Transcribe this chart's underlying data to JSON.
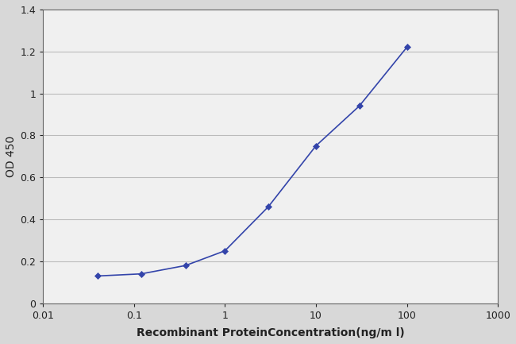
{
  "x": [
    0.04,
    0.12,
    0.37,
    1.0,
    3.0,
    10.0,
    30.0,
    100.0
  ],
  "y": [
    0.13,
    0.14,
    0.18,
    0.25,
    0.46,
    0.75,
    0.94,
    1.22
  ],
  "line_color": "#3344aa",
  "marker": "D",
  "marker_size": 4,
  "title": "",
  "ylabel": "OD 450",
  "xlabel": "Recombinant ProteinConcentration(ng/m l)",
  "xlim": [
    0.01,
    1000
  ],
  "ylim": [
    0,
    1.4
  ],
  "yticks": [
    0,
    0.2,
    0.4,
    0.6,
    0.8,
    1.0,
    1.2,
    1.4
  ],
  "ytick_labels": [
    "0",
    "0.2",
    "0.4",
    "0.6",
    "0.8",
    "1",
    "1.2",
    "1.4"
  ],
  "xtick_positions": [
    0.01,
    0.1,
    1,
    10,
    100,
    1000
  ],
  "xtick_labels": [
    "0.01",
    "0.1",
    "1",
    "10",
    "100",
    "1000"
  ],
  "figure_bg": "#d8d8d8",
  "plot_bg": "#f0f0f0",
  "grid_color": "#bbbbbb",
  "font_color": "#222222",
  "label_fontsize": 10,
  "tick_fontsize": 9
}
